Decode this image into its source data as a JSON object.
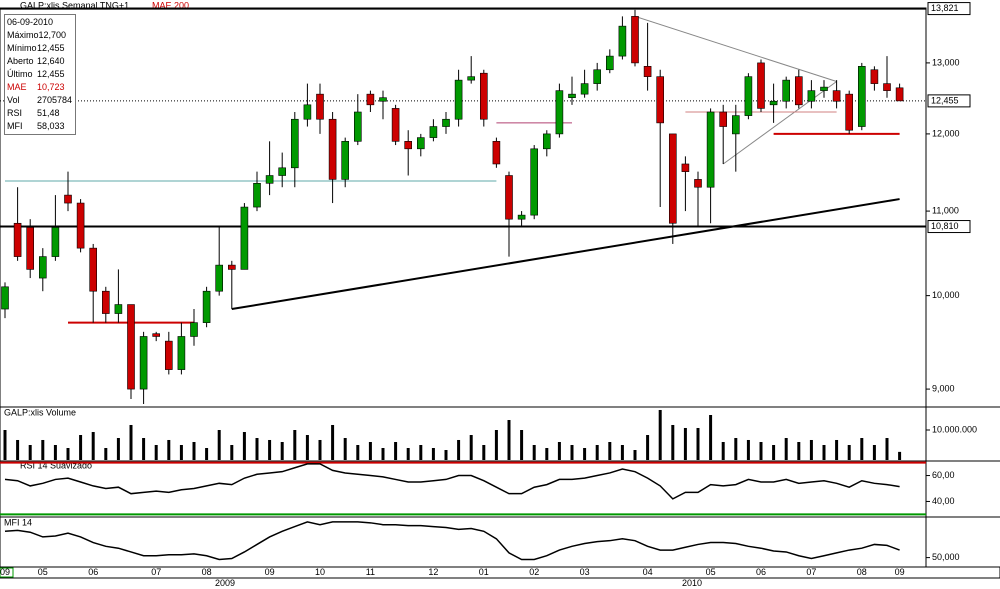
{
  "info": {
    "date": "06-09-2010",
    "rows": [
      [
        "Máximo",
        "12,700"
      ],
      [
        "Mínimo",
        "12,455"
      ],
      [
        "Aberto",
        "12,640"
      ],
      [
        "Último",
        "12,455"
      ],
      [
        "MAE",
        "10,723"
      ],
      [
        "Vol",
        "2705784"
      ],
      [
        "RSI",
        "51,48"
      ],
      [
        "MFI",
        "58,033"
      ]
    ]
  },
  "years": [
    "2009",
    "2010"
  ],
  "chart_data": [
    {
      "type": "candlestick",
      "title": "GALP:xlis Semanal TNG+1",
      "indicator": "MAE 200",
      "categories": [
        "09",
        null,
        null,
        "05",
        null,
        null,
        null,
        "06",
        null,
        null,
        null,
        null,
        "07",
        null,
        null,
        null,
        "08",
        null,
        null,
        null,
        null,
        "09",
        null,
        null,
        null,
        "10",
        null,
        null,
        null,
        "11",
        null,
        null,
        null,
        null,
        "12",
        null,
        null,
        null,
        "01",
        null,
        null,
        null,
        "02",
        null,
        null,
        null,
        "03",
        null,
        null,
        null,
        null,
        "04",
        null,
        null,
        null,
        null,
        "05",
        null,
        null,
        null,
        "06",
        null,
        null,
        null,
        "07",
        null,
        null,
        null,
        "08",
        null,
        null,
        "09"
      ],
      "open": [
        9.85,
        10.85,
        10.8,
        10.2,
        10.45,
        11.2,
        11.1,
        10.55,
        10.05,
        9.8,
        9.9,
        9.0,
        9.58,
        9.5,
        9.2,
        9.55,
        9.7,
        10.05,
        10.35,
        10.3,
        11.05,
        11.35,
        11.45,
        11.55,
        12.2,
        12.55,
        12.2,
        11.4,
        11.9,
        12.55,
        12.45,
        12.35,
        11.9,
        11.8,
        11.95,
        12.1,
        12.2,
        12.75,
        12.85,
        11.9,
        11.45,
        10.9,
        10.95,
        11.8,
        12.0,
        12.5,
        12.55,
        12.7,
        12.9,
        13.1,
        13.7,
        12.95,
        12.8,
        12.0,
        11.6,
        11.4,
        11.3,
        12.3,
        12.0,
        12.25,
        13.0,
        12.4,
        12.45,
        12.8,
        12.45,
        12.6,
        12.6,
        12.55,
        12.1,
        12.9,
        12.7,
        12.64
      ],
      "high": [
        10.15,
        11.3,
        10.9,
        10.55,
        11.2,
        11.5,
        11.15,
        10.6,
        10.1,
        10.3,
        9.9,
        9.6,
        9.6,
        9.6,
        9.7,
        9.85,
        10.1,
        10.8,
        10.4,
        11.1,
        11.5,
        11.9,
        11.75,
        12.3,
        12.7,
        12.7,
        12.3,
        11.95,
        12.55,
        12.6,
        12.6,
        12.4,
        12.05,
        12.0,
        12.2,
        12.3,
        12.9,
        13.1,
        12.9,
        11.95,
        11.5,
        11.0,
        11.85,
        12.05,
        12.7,
        12.8,
        12.9,
        13.0,
        13.2,
        13.7,
        13.8,
        13.6,
        12.9,
        12.0,
        11.7,
        11.5,
        12.35,
        12.4,
        12.4,
        12.85,
        13.05,
        12.7,
        12.8,
        12.9,
        12.75,
        12.75,
        12.75,
        12.6,
        13.0,
        12.95,
        13.1,
        12.7
      ],
      "low": [
        9.75,
        10.4,
        10.2,
        10.05,
        10.4,
        11.0,
        10.5,
        9.7,
        9.7,
        9.7,
        8.9,
        8.85,
        9.5,
        9.15,
        9.15,
        9.45,
        9.65,
        10.0,
        9.85,
        10.3,
        11.0,
        11.2,
        11.3,
        11.3,
        12.1,
        12.0,
        11.1,
        11.3,
        11.85,
        12.3,
        12.2,
        11.85,
        11.45,
        11.7,
        11.9,
        12.0,
        12.1,
        12.7,
        12.1,
        11.55,
        10.45,
        10.8,
        10.9,
        11.7,
        11.95,
        12.4,
        12.5,
        12.6,
        12.85,
        13.05,
        12.95,
        12.6,
        11.05,
        10.6,
        11.0,
        10.8,
        10.85,
        11.6,
        11.5,
        12.2,
        12.3,
        12.15,
        12.35,
        12.35,
        12.35,
        12.5,
        12.35,
        12.0,
        12.05,
        12.6,
        12.5,
        12.455
      ],
      "close": [
        10.1,
        10.45,
        10.3,
        10.45,
        10.8,
        11.1,
        10.55,
        10.05,
        9.8,
        9.9,
        9.0,
        9.55,
        9.55,
        9.2,
        9.55,
        9.7,
        10.05,
        10.35,
        10.3,
        11.05,
        11.35,
        11.45,
        11.55,
        12.2,
        12.4,
        12.2,
        11.4,
        11.9,
        12.3,
        12.4,
        12.5,
        11.9,
        11.8,
        11.95,
        12.1,
        12.2,
        12.75,
        12.8,
        12.2,
        11.6,
        10.9,
        10.95,
        11.8,
        12.0,
        12.6,
        12.55,
        12.7,
        12.9,
        13.1,
        13.55,
        13.0,
        12.8,
        12.15,
        10.85,
        11.5,
        11.3,
        12.3,
        12.1,
        12.25,
        12.8,
        12.35,
        12.45,
        12.75,
        12.4,
        12.6,
        12.65,
        12.45,
        12.05,
        12.95,
        12.7,
        12.6,
        12.455
      ],
      "up_color": "#009900",
      "down_color": "#cc0000",
      "log_scale": true,
      "ylim": [
        8.84,
        13.83
      ],
      "yticks": [
        {
          "value": 9,
          "label": "9,000"
        },
        {
          "value": 10,
          "label": "10,000"
        },
        {
          "value": 11,
          "label": "11,000"
        },
        {
          "value": 12,
          "label": "12,000"
        },
        {
          "value": 13,
          "label": "13,000"
        }
      ],
      "price_markers": [
        {
          "value": 13.821,
          "label": "13,821",
          "style": "solid"
        },
        {
          "value": 12.455,
          "label": "12,455",
          "style": "dotted"
        },
        {
          "value": 10.81,
          "label": "10,810",
          "style": "solid"
        }
      ],
      "trend_lines": [
        {
          "x": [
            18,
            71
          ],
          "y": [
            9.85,
            11.15
          ],
          "color": "#000000"
        },
        {
          "x": [
            50,
            66
          ],
          "y": [
            13.7,
            12.73
          ],
          "color": "#888888"
        },
        {
          "x": [
            57,
            66
          ],
          "y": [
            11.6,
            12.73
          ],
          "color": "#888888"
        },
        {
          "x": [
            0,
            39
          ],
          "y": [
            11.38,
            11.38
          ],
          "color": "#5fa8a8"
        },
        {
          "x": [
            5,
            15
          ],
          "y": [
            9.7,
            9.7
          ],
          "color": "#cc0000"
        },
        {
          "x": [
            39,
            45
          ],
          "y": [
            12.15,
            12.15
          ],
          "color": "#b04070"
        },
        {
          "x": [
            54,
            66
          ],
          "y": [
            12.3,
            12.3
          ],
          "color": "#d08080"
        },
        {
          "x": [
            61,
            71
          ],
          "y": [
            12.0,
            12.0
          ],
          "color": "#cc0000"
        }
      ]
    },
    {
      "type": "bar",
      "title": "GALP:xlis Volume",
      "color": "#000000",
      "values": [
        10000000,
        6670000,
        5000000,
        6670000,
        5000000,
        4000000,
        8330000,
        9330000,
        4000000,
        7330000,
        11670000,
        7330000,
        5000000,
        6670000,
        5000000,
        6000000,
        4000000,
        10000000,
        5000000,
        9330000,
        7330000,
        6670000,
        6000000,
        10000000,
        8330000,
        6670000,
        11670000,
        7330000,
        5000000,
        6000000,
        4000000,
        6000000,
        4000000,
        5000000,
        4000000,
        3330000,
        6670000,
        8330000,
        5000000,
        10000000,
        13330000,
        10000000,
        5000000,
        4000000,
        6000000,
        5000000,
        4000000,
        5000000,
        6000000,
        5000000,
        3330000,
        8330000,
        16670000,
        11670000,
        10670000,
        10670000,
        15000000,
        6000000,
        7330000,
        6670000,
        6000000,
        5000000,
        7330000,
        6000000,
        6670000,
        5000000,
        6670000,
        5000000,
        7330000,
        5000000,
        7330000,
        2705784
      ],
      "ylim": [
        0,
        17000000
      ],
      "yticks": [
        {
          "value": 10000000,
          "label": "10.000.000"
        }
      ]
    },
    {
      "type": "line",
      "title": "RSI 14 Suavizado",
      "color": "#000000",
      "values": [
        57,
        56,
        52,
        54,
        57,
        58,
        55,
        52,
        50,
        51,
        46,
        47,
        48,
        47,
        49,
        50,
        52,
        54,
        53,
        58,
        61,
        62,
        63,
        66,
        69,
        69,
        64,
        62,
        61,
        60,
        59,
        57,
        55,
        55,
        56,
        57,
        60,
        60,
        56,
        51,
        46,
        46,
        51,
        53,
        57,
        57,
        58,
        60,
        62,
        65,
        63,
        58,
        52,
        42,
        47,
        47,
        53,
        52,
        53,
        57,
        55,
        55,
        57,
        54,
        55,
        56,
        54,
        51,
        56,
        54,
        53,
        51.48
      ],
      "ylim": [
        28,
        72
      ],
      "yticks": [
        {
          "value": 60,
          "label": "60,00"
        },
        {
          "value": 40,
          "label": "40,00"
        }
      ],
      "levels": [
        {
          "value": 70,
          "color": "#cc0000"
        },
        {
          "value": 30,
          "color": "#009900"
        }
      ]
    },
    {
      "type": "line",
      "title": "MFI 14",
      "color": "#000000",
      "values": [
        78,
        79,
        77,
        72,
        73,
        76,
        72,
        66,
        62,
        60,
        56,
        52,
        52,
        53,
        53,
        54,
        52,
        48,
        49,
        56,
        64,
        72,
        78,
        83,
        88,
        85,
        88,
        88,
        88,
        87,
        85,
        85,
        84,
        84,
        83,
        82,
        80,
        81,
        78,
        70,
        55,
        48,
        48,
        52,
        58,
        62,
        65,
        67,
        68,
        70,
        68,
        62,
        58,
        58,
        61,
        64,
        66,
        66,
        65,
        62,
        60,
        57,
        56,
        52,
        49,
        52,
        55,
        58,
        60,
        64,
        63,
        58.033
      ],
      "ylim": [
        40,
        90
      ],
      "yticks": [
        {
          "value": 50,
          "label": "50,000"
        }
      ]
    }
  ]
}
